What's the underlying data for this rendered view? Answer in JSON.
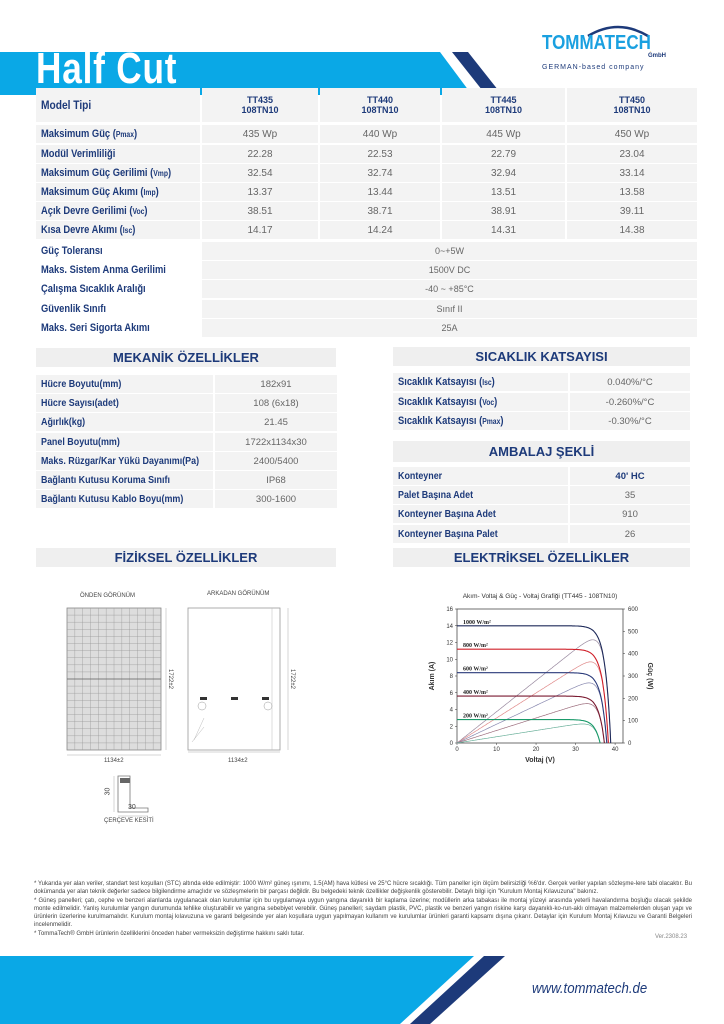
{
  "header": {
    "title": "Half Cut",
    "logo_text": "TOMMATECH",
    "logo_sub": "GmbH",
    "logo_tagline": "GERMAN-based company",
    "colors": {
      "cyan": "#0aa8e6",
      "navy": "#1d3a7a"
    }
  },
  "main_table": {
    "header_label": "Model Tipi",
    "models": [
      {
        "line1": "TT435",
        "line2": "108TN10"
      },
      {
        "line1": "TT440",
        "line2": "108TN10"
      },
      {
        "line1": "TT445",
        "line2": "108TN10"
      },
      {
        "line1": "TT450",
        "line2": "108TN10"
      }
    ],
    "rows": [
      {
        "label": "Maksimum Güç (",
        "sub": "Pmax",
        "end": ")",
        "values": [
          "435 Wp",
          "440 Wp",
          "445 Wp",
          "450 Wp"
        ]
      },
      {
        "label": "Modül Verimliliği",
        "sub": "",
        "end": "",
        "values": [
          "22.28",
          "22.53",
          "22.79",
          "23.04"
        ]
      },
      {
        "label": "Maksimum Güç Gerilimi (",
        "sub": "Vmp",
        "end": ")",
        "values": [
          "32.54",
          "32.74",
          "32.94",
          "33.14"
        ]
      },
      {
        "label": "Maksimum Güç Akımı (",
        "sub": "Imp",
        "end": ")",
        "values": [
          "13.37",
          "13.44",
          "13.51",
          "13.58"
        ]
      },
      {
        "label": "Açık Devre Gerilimi (",
        "sub": "Voc",
        "end": ")",
        "values": [
          "38.51",
          "38.71",
          "38.91",
          "39.11"
        ]
      },
      {
        "label": "Kısa Devre Akımı (",
        "sub": "Isc",
        "end": ")",
        "values": [
          "14.17",
          "14.24",
          "14.31",
          "14.38"
        ]
      }
    ],
    "merged_rows": [
      {
        "label": "Güç Toleransı",
        "value": "0~+5W"
      },
      {
        "label": "Maks. Sistem Anma Gerilimi",
        "value": "1500V DC"
      },
      {
        "label": "Çalışma Sıcaklık Aralığı",
        "value": "-40 ~ +85°C"
      },
      {
        "label": "Güvenlik Sınıfı",
        "value": "Sınıf II"
      },
      {
        "label": "Maks. Seri Sigorta Akımı",
        "value": "25A"
      }
    ]
  },
  "mechanical": {
    "title": "MEKANİK ÖZELLİKLER",
    "rows": [
      {
        "label": "Hücre Boyutu(mm)",
        "value": "182x91"
      },
      {
        "label": "Hücre Sayısı(adet)",
        "value": "108 (6x18)"
      },
      {
        "label": "Ağırlık(kg)",
        "value": "21.45"
      },
      {
        "label": "Panel Boyutu(mm)",
        "value": "1722x1134x30"
      },
      {
        "label": "Maks. Rüzgar/Kar Yükü Dayanımı(Pa)",
        "value": "2400/5400"
      },
      {
        "label": "Bağlantı Kutusu Koruma Sınıfı",
        "value": "IP68"
      },
      {
        "label": "Bağlantı Kutusu Kablo Boyu(mm)",
        "value": "300-1600"
      }
    ]
  },
  "temperature": {
    "title": "SICAKLIK KATSAYISI",
    "rows": [
      {
        "label": "Sıcaklık Katsayısı (",
        "sub": "Isc",
        "end": ")",
        "value": "0.040%/°C"
      },
      {
        "label": "Sıcaklık Katsayısı (",
        "sub": "Voc",
        "end": ")",
        "value": "-0.260%/°C"
      },
      {
        "label": "Sıcaklık Katsayısı (",
        "sub": "Pmax",
        "end": ")",
        "value": "-0.30%/°C"
      }
    ]
  },
  "packaging": {
    "title": "AMBALAJ ŞEKLİ",
    "rows": [
      {
        "label": "Konteyner",
        "value": "40' HC"
      },
      {
        "label": "Palet Başına Adet",
        "value": "35"
      },
      {
        "label": "Konteyner Başına Adet",
        "value": "910"
      },
      {
        "label": "Konteyner Başına Palet",
        "value": "26"
      }
    ]
  },
  "physical": {
    "title": "FİZİKSEL ÖZELLİKLER",
    "front_label": "ÖNDEN GÖRÜNÜM",
    "back_label": "ARKADAN GÖRÜNÜM",
    "width_dim": "1134±2",
    "height_dim": "1722±2",
    "frame_label": "ÇERÇEVE KESİTİ",
    "frame_h": "30",
    "frame_w": "30"
  },
  "electrical": {
    "title": "ELEKTRİKSEL ÖZELLİKLER"
  },
  "chart_data": {
    "type": "line",
    "title": "Akım- Voltaj & Güç - Voltaj Grafiği (TT445 - 108TN10)",
    "xlabel": "Voltaj (V)",
    "ylabel": "Akım (A)",
    "y2label": "Güç (W)",
    "xlim": [
      0,
      42
    ],
    "ylim": [
      0,
      16
    ],
    "y2lim": [
      0,
      600
    ],
    "xticks": [
      0,
      10,
      20,
      30,
      40
    ],
    "yticks": [
      0,
      2,
      4,
      6,
      8,
      10,
      12,
      14,
      16
    ],
    "y2ticks": [
      0,
      100,
      200,
      300,
      400,
      500,
      600
    ],
    "grid": false,
    "series": [
      {
        "name": "1000 W/m²",
        "color": "#1e2a5a",
        "pcolor": "#9a8aa0",
        "isc": 14.0,
        "voc": 38.9
      },
      {
        "name": "800 W/m²",
        "color": "#d0202a",
        "pcolor": "#e08a8a",
        "isc": 11.2,
        "voc": 38.3
      },
      {
        "name": "600 W/m²",
        "color": "#2a3a7a",
        "pcolor": "#8a8ab0",
        "isc": 8.4,
        "voc": 37.9
      },
      {
        "name": "400 W/m²",
        "color": "#7a1a30",
        "pcolor": "#9a6a7a",
        "isc": 5.6,
        "voc": 37.3
      },
      {
        "name": "200 W/m²",
        "color": "#1a9a6a",
        "pcolor": "#6ab09a",
        "isc": 2.8,
        "voc": 36.2
      }
    ]
  },
  "footnotes": [
    "* Yukarıda yer alan veriler, standart test koşulları (STC) altında elde edilmiştir: 1000 W/m² güneş ışınımı, 1.5(AM) hava kütlesi ve 25°C hücre sıcaklığı. Tüm paneller için ölçüm belirsizliği %6'dır. Gerçek veriler yapılan sözleşme-lere tabi olacaktır. Bu dokümanda yer alan teknik değerler sadece bilgilendirme amaçlıdır ve sözleşmelerin bir parçası değildir. Bu belgedeki teknik özellikler değişkenlik gösterebilir. Detaylı bilgi için \"Kurulum Montaj Kılavuzuna\" bakınız.",
    "* Güneş panelleri; çatı, cephe ve benzeri alanlarda uygulanacak olan kurulumlar için bu uygulamaya uygun yangına dayanıklı bir kaplama üzerine; modüllerin arka tabakası ile montaj yüzeyi arasında yeterli havalandırma boşluğu olacak şekilde monte edilmelidir. Yanlış kurulumlar yangın durumunda tehlike oluşturabilir ve yangına sebebiyet verebilir. Güneş panelleri; saydam plastik, PVC, plastik ve benzeri yangın riskine karşı dayanıklı-ko-run-aklı olmayan malzemelerden oluşan yapı ve ürünlerin üzerlerine kurulmamalıdır. Kurulum montaj kılavuzuna ve garanti belgesinde yer alan koşullara uygun yapılmayan kullanım ve kurulumlar ürünleri garanti kapsamı dışına çıkarır. Detaylar için Kurulum Montaj Kılavuzu ve Garanti Belgeleri incelenmelidir.",
    "* TommaTech® GmbH ürünlerin özelliklerini önceden haber vermeksizin değiştirme hakkını saklı tutar."
  ],
  "version": "Ver.2308.23",
  "footer": {
    "url": "www.tommatech.de"
  }
}
